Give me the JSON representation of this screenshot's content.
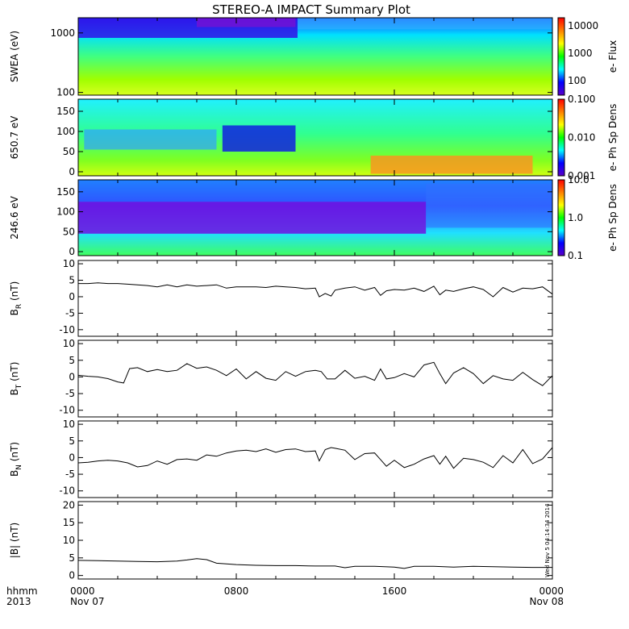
{
  "title": "STEREO-A IMPACT Summary Plot",
  "time_axis": {
    "left_labels": [
      "hhmm",
      "2013"
    ],
    "ticks": [
      {
        "t": 0,
        "line1": "0000",
        "line2": "Nov 07"
      },
      {
        "t": 8,
        "line1": "0800",
        "line2": ""
      },
      {
        "t": 16,
        "line1": "1600",
        "line2": ""
      },
      {
        "t": 24,
        "line1": "0000",
        "line2": "Nov 08"
      }
    ],
    "range_hours": [
      0,
      24
    ]
  },
  "stamp": "Wed Nov  5 04:14:34 2014",
  "colors": {
    "line": "#000000",
    "spectrogram_scale": [
      "#5a00c8",
      "#0000ff",
      "#00ffff",
      "#00ff00",
      "#ffff00",
      "#ff8000",
      "#ff0000"
    ]
  },
  "chart_data": [
    {
      "type": "heatmap",
      "id": "swea",
      "ylabel": "SWEA (eV)",
      "y_scale": "log",
      "ylim": [
        90,
        1800
      ],
      "yticks": [
        {
          "v": 1000,
          "label": "1000"
        },
        {
          "v": 100,
          "label": "100"
        }
      ],
      "colorbar": {
        "label": "e- Flux",
        "scale": "log",
        "range": [
          30,
          20000
        ],
        "ticks": [
          {
            "v": 10000,
            "label": "10000"
          },
          {
            "v": 1000,
            "label": "1000"
          },
          {
            "v": 100,
            "label": "100"
          }
        ]
      }
    },
    {
      "type": "heatmap",
      "id": "pad650",
      "ylabel": "650.7 eV",
      "y_scale": "linear",
      "ylim": [
        -10,
        180
      ],
      "yticks": [
        {
          "v": 150,
          "label": "150"
        },
        {
          "v": 100,
          "label": "100"
        },
        {
          "v": 50,
          "label": "50"
        },
        {
          "v": 0,
          "label": "0"
        }
      ],
      "colorbar": {
        "label": "e- Ph Sp Dens",
        "scale": "log",
        "range": [
          0.001,
          0.1
        ],
        "ticks": [
          {
            "v": 0.1,
            "label": "0.100"
          },
          {
            "v": 0.01,
            "label": "0.010"
          },
          {
            "v": 0.001,
            "label": "0.001"
          }
        ]
      }
    },
    {
      "type": "heatmap",
      "id": "pad246",
      "ylabel": "246.6 eV",
      "y_scale": "linear",
      "ylim": [
        -10,
        180
      ],
      "yticks": [
        {
          "v": 150,
          "label": "150"
        },
        {
          "v": 100,
          "label": "100"
        },
        {
          "v": 50,
          "label": "50"
        },
        {
          "v": 0,
          "label": "0"
        }
      ],
      "colorbar": {
        "label": "e- Ph Sp Dens",
        "scale": "log",
        "range": [
          0.1,
          10
        ],
        "ticks": [
          {
            "v": 10,
            "label": "10.0"
          },
          {
            "v": 1,
            "label": "1.0"
          },
          {
            "v": 0.1,
            "label": "0.1"
          }
        ]
      }
    },
    {
      "type": "line",
      "id": "br",
      "ylabel": "B",
      "ylabel_sub": "R",
      "ylabel_unit": " (nT)",
      "ylim": [
        -12,
        11
      ],
      "yticks": [
        10,
        5,
        0,
        -5,
        -10
      ],
      "x": [
        0,
        0.5,
        1,
        1.5,
        2,
        2.5,
        3,
        3.5,
        4,
        4.5,
        5,
        5.5,
        6,
        6.5,
        7,
        7.5,
        8,
        8.5,
        9,
        9.5,
        10,
        10.5,
        11,
        11.5,
        12,
        12.2,
        12.5,
        12.8,
        13,
        13.5,
        14,
        14.5,
        15,
        15.3,
        15.6,
        16,
        16.5,
        17,
        17.5,
        18,
        18.3,
        18.6,
        19,
        19.5,
        20,
        20.5,
        21,
        21.5,
        22,
        22.5,
        23,
        23.5,
        24
      ],
      "y": [
        4,
        4,
        4.2,
        4,
        4,
        3.8,
        3.6,
        3.4,
        3,
        3.6,
        3,
        3.6,
        3.2,
        3.4,
        3.6,
        2.6,
        3,
        3,
        3,
        2.8,
        3.2,
        3,
        2.8,
        2.4,
        2.6,
        0,
        1,
        0.2,
        2,
        2.6,
        3,
        2,
        2.8,
        0.4,
        1.8,
        2.2,
        2,
        2.6,
        1.6,
        3.2,
        0.6,
        2,
        1.6,
        2.4,
        3,
        2.2,
        0,
        2.8,
        1.4,
        2.6,
        2.4,
        3,
        0.8
      ]
    },
    {
      "type": "line",
      "id": "bt",
      "ylabel": "B",
      "ylabel_sub": "T",
      "ylabel_unit": " (nT)",
      "ylim": [
        -12,
        11
      ],
      "yticks": [
        10,
        5,
        0,
        -5,
        -10
      ],
      "x": [
        0,
        0.5,
        1,
        1.5,
        2,
        2.3,
        2.6,
        3,
        3.5,
        4,
        4.5,
        5,
        5.5,
        6,
        6.5,
        7,
        7.5,
        8,
        8.5,
        9,
        9.5,
        10,
        10.5,
        11,
        11.5,
        12,
        12.3,
        12.6,
        13,
        13.5,
        14,
        14.5,
        15,
        15.3,
        15.6,
        16,
        16.5,
        17,
        17.5,
        18,
        18.3,
        18.6,
        19,
        19.5,
        20,
        20.5,
        21,
        21.5,
        22,
        22.5,
        23,
        23.5,
        24
      ],
      "y": [
        0.5,
        0.2,
        0,
        -0.5,
        -1.5,
        -1.8,
        2.5,
        2.8,
        1.6,
        2.2,
        1.6,
        2,
        4,
        2.6,
        3,
        2,
        0.4,
        2.4,
        -0.6,
        1.6,
        -0.4,
        -1,
        1.6,
        0.2,
        1.6,
        2,
        1.6,
        -0.6,
        -0.6,
        2,
        -0.4,
        0.2,
        -1,
        2.4,
        -0.6,
        -0.2,
        1,
        0,
        3.6,
        4.4,
        1,
        -2,
        1.2,
        2.8,
        1,
        -2,
        0.4,
        -0.6,
        -1,
        1.4,
        -0.8,
        -2.6,
        0.4
      ]
    },
    {
      "type": "line",
      "id": "bn",
      "ylabel": "B",
      "ylabel_sub": "N",
      "ylabel_unit": " (nT)",
      "ylim": [
        -12,
        11
      ],
      "yticks": [
        10,
        5,
        0,
        -5,
        -10
      ],
      "x": [
        0,
        0.5,
        1,
        1.5,
        2,
        2.5,
        3,
        3.5,
        4,
        4.5,
        5,
        5.5,
        6,
        6.5,
        7,
        7.5,
        8,
        8.5,
        9,
        9.5,
        10,
        10.5,
        11,
        11.5,
        12,
        12.2,
        12.5,
        12.8,
        13,
        13.5,
        14,
        14.5,
        15,
        15.3,
        15.6,
        16,
        16.5,
        17,
        17.5,
        18,
        18.3,
        18.6,
        19,
        19.5,
        20,
        20.5,
        21,
        21.5,
        22,
        22.5,
        23,
        23.5,
        24
      ],
      "y": [
        -1.6,
        -1.4,
        -1,
        -0.8,
        -1,
        -1.6,
        -2.8,
        -2.4,
        -1,
        -2,
        -0.6,
        -0.4,
        -0.8,
        0.8,
        0.4,
        1.4,
        2,
        2.2,
        1.8,
        2.6,
        1.6,
        2.4,
        2.6,
        1.8,
        2,
        -1,
        2.4,
        3,
        2.8,
        2.2,
        -0.6,
        1.2,
        1.4,
        -0.6,
        -2.6,
        -0.8,
        -3,
        -2,
        -0.4,
        0.6,
        -2,
        0.4,
        -3.2,
        -0.2,
        -0.6,
        -1.4,
        -3,
        0.6,
        -1.6,
        2.4,
        -1.8,
        -0.4,
        3
      ]
    },
    {
      "type": "line",
      "id": "bmag",
      "ylabel": "|B|",
      "ylabel_sub": "",
      "ylabel_unit": " (nT)",
      "ylim": [
        -1,
        21
      ],
      "yticks": [
        20,
        15,
        10,
        5,
        0
      ],
      "x": [
        0,
        1,
        2,
        3,
        4,
        5,
        5.5,
        6,
        6.5,
        7,
        8,
        9,
        10,
        11,
        12,
        13,
        13.5,
        14,
        15,
        16,
        16.5,
        17,
        18,
        19,
        20,
        21,
        22,
        23,
        24
      ],
      "y": [
        4.3,
        4.2,
        4.1,
        4,
        3.9,
        4.1,
        4.4,
        4.8,
        4.5,
        3.5,
        3.1,
        2.9,
        2.8,
        2.8,
        2.7,
        2.7,
        2.2,
        2.6,
        2.6,
        2.4,
        2,
        2.6,
        2.6,
        2.4,
        2.6,
        2.5,
        2.4,
        2.3,
        2.3
      ]
    }
  ]
}
